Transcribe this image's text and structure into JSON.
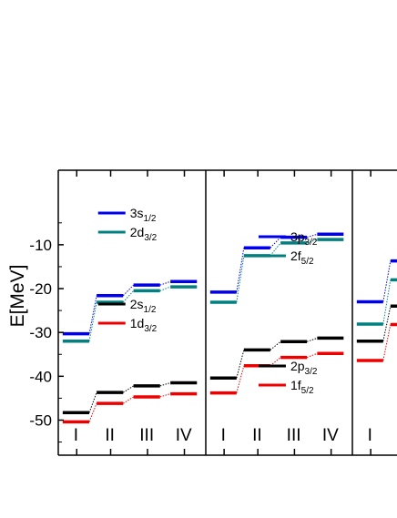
{
  "chart_data": {
    "type": "line",
    "ylabel": "E[MeV]",
    "ylim": [
      -58,
      7
    ],
    "yticks": [
      -10,
      -20,
      -30,
      -40,
      -50
    ],
    "categories": [
      "I",
      "II",
      "III",
      "IV"
    ],
    "colors": {
      "blue": "#0000ee",
      "teal": "#008080",
      "black": "#000000",
      "red": "#ee0000"
    },
    "panels": [
      {
        "legends": [
          {
            "entries": [
              {
                "name_main": "3s",
                "name_sub": "1/2",
                "color": "blue"
              },
              {
                "name_main": "2d",
                "name_sub": "3/2",
                "color": "teal"
              }
            ]
          },
          {
            "entries": [
              {
                "name_main": "2s",
                "name_sub": "1/2",
                "color": "black"
              },
              {
                "name_main": "1d",
                "name_sub": "3/2",
                "color": "red"
              }
            ]
          }
        ],
        "series": [
          {
            "name": "3s1/2",
            "color": "blue",
            "values": [
              -30.3,
              -21.6,
              -19.2,
              -18.4
            ]
          },
          {
            "name": "2d3/2",
            "color": "teal",
            "values": [
              -32.0,
              -23.1,
              -20.5,
              -19.6
            ]
          },
          {
            "name": "2s1/2",
            "color": "black",
            "values": [
              -48.3,
              -43.7,
              -42.2,
              -41.5
            ]
          },
          {
            "name": "1d3/2",
            "color": "red",
            "values": [
              -50.4,
              -46.2,
              -44.7,
              -44.0
            ]
          }
        ]
      },
      {
        "legends": [
          {
            "entries": [
              {
                "name_main": "3p",
                "name_sub": "3/2",
                "color": "blue"
              },
              {
                "name_main": "2f",
                "name_sub": "5/2",
                "color": "teal"
              }
            ]
          },
          {
            "entries": [
              {
                "name_main": "2p",
                "name_sub": "3/2",
                "color": "black"
              },
              {
                "name_main": "1f",
                "name_sub": "5/2",
                "color": "red"
              }
            ]
          }
        ],
        "series": [
          {
            "name": "3p3/2",
            "color": "blue",
            "values": [
              -20.8,
              -10.7,
              -8.3,
              -7.6
            ]
          },
          {
            "name": "2f5/2",
            "color": "teal",
            "values": [
              -23.1,
              -12.5,
              -9.6,
              -8.8
            ]
          },
          {
            "name": "2p3/2",
            "color": "black",
            "values": [
              -40.4,
              -34.0,
              -32.1,
              -31.3
            ]
          },
          {
            "name": "1f5/2",
            "color": "red",
            "values": [
              -43.8,
              -37.6,
              -35.7,
              -34.8
            ]
          }
        ]
      },
      {
        "legends": [],
        "series": [
          {
            "name": "blue",
            "color": "blue",
            "values": [
              -23.0,
              -13.7,
              null,
              null
            ]
          },
          {
            "name": "teal",
            "color": "teal",
            "values": [
              -28.1,
              -18.0,
              null,
              null
            ]
          },
          {
            "name": "black",
            "color": "black",
            "values": [
              -32.0,
              -24.0,
              null,
              null
            ]
          },
          {
            "name": "red",
            "color": "red",
            "values": [
              -36.4,
              -28.2,
              null,
              null
            ]
          }
        ]
      }
    ]
  }
}
